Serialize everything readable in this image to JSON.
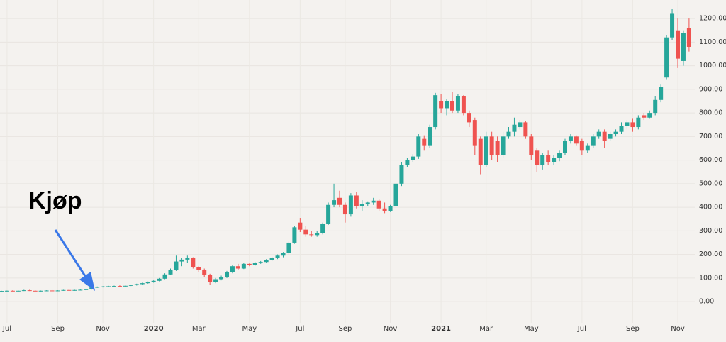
{
  "chart_data": {
    "type": "candlestick",
    "annotation": "Kjøp",
    "categories": [
      null,
      "Jul",
      null,
      null,
      null,
      null,
      null,
      null,
      null,
      null,
      "Sep",
      null,
      null,
      null,
      null,
      null,
      null,
      null,
      "Nov",
      null,
      null,
      null,
      null,
      null,
      null,
      null,
      null,
      "2020",
      null,
      null,
      null,
      null,
      null,
      null,
      null,
      "Mar",
      null,
      null,
      null,
      null,
      null,
      null,
      null,
      null,
      "May",
      null,
      null,
      null,
      null,
      null,
      null,
      null,
      null,
      "Jul",
      null,
      null,
      null,
      null,
      null,
      null,
      null,
      "Sep",
      null,
      null,
      null,
      null,
      null,
      null,
      null,
      "Nov",
      null,
      null,
      null,
      null,
      null,
      null,
      null,
      null,
      "2021",
      null,
      null,
      null,
      null,
      null,
      null,
      null,
      "Mar",
      null,
      null,
      null,
      null,
      null,
      null,
      null,
      "May",
      null,
      null,
      null,
      null,
      null,
      null,
      null,
      null,
      "Jul",
      null,
      null,
      null,
      null,
      null,
      null,
      null,
      null,
      "Sep",
      null,
      null,
      null,
      null,
      null,
      null,
      null,
      "Nov",
      null,
      null
    ],
    "open": [
      44,
      45,
      46,
      45,
      46,
      48,
      46,
      45,
      46,
      47,
      46,
      47,
      49,
      48,
      49,
      50,
      52,
      60,
      62,
      64,
      65,
      66,
      65,
      67,
      70,
      74,
      78,
      83,
      88,
      97,
      115,
      135,
      170,
      178,
      185,
      145,
      135,
      112,
      82,
      95,
      105,
      125,
      150,
      140,
      160,
      155,
      165,
      168,
      176,
      185,
      195,
      205,
      250,
      335,
      305,
      285,
      282,
      290,
      330,
      410,
      440,
      410,
      370,
      450,
      405,
      415,
      420,
      428,
      395,
      385,
      405,
      500,
      580,
      600,
      615,
      690,
      660,
      740,
      850,
      820,
      850,
      810,
      870,
      800,
      770,
      690,
      580,
      700,
      680,
      620,
      700,
      720,
      740,
      760,
      700,
      640,
      580,
      620,
      590,
      610,
      630,
      680,
      700,
      680,
      640,
      660,
      700,
      720,
      690,
      710,
      720,
      745,
      760,
      740,
      790,
      780,
      800,
      855,
      950,
      1120,
      1150,
      1020,
      1160
    ],
    "high": [
      46,
      47,
      48,
      47,
      50,
      50,
      48,
      47,
      48,
      49,
      48,
      50,
      51,
      50,
      52,
      53,
      62,
      64,
      66,
      67,
      68,
      69,
      68,
      72,
      76,
      80,
      85,
      90,
      100,
      120,
      140,
      195,
      185,
      195,
      188,
      150,
      140,
      118,
      100,
      110,
      130,
      155,
      160,
      165,
      162,
      168,
      172,
      180,
      190,
      200,
      210,
      255,
      320,
      355,
      320,
      300,
      300,
      335,
      420,
      500,
      470,
      420,
      460,
      465,
      430,
      425,
      440,
      435,
      420,
      410,
      510,
      590,
      610,
      625,
      710,
      705,
      750,
      885,
      880,
      860,
      890,
      880,
      875,
      810,
      780,
      700,
      720,
      720,
      700,
      720,
      740,
      780,
      770,
      765,
      710,
      650,
      630,
      640,
      620,
      640,
      690,
      710,
      705,
      690,
      670,
      710,
      730,
      730,
      720,
      730,
      760,
      770,
      775,
      790,
      800,
      810,
      870,
      920,
      1130,
      1240,
      1200,
      1150,
      1200
    ],
    "low": [
      42,
      43,
      44,
      43,
      45,
      45,
      44,
      43,
      44,
      45,
      44,
      46,
      47,
      46,
      47,
      48,
      51,
      58,
      60,
      62,
      63,
      64,
      63,
      66,
      68,
      72,
      76,
      80,
      86,
      95,
      112,
      130,
      150,
      165,
      140,
      125,
      105,
      70,
      78,
      90,
      100,
      120,
      135,
      138,
      150,
      152,
      160,
      165,
      172,
      180,
      188,
      200,
      245,
      295,
      275,
      275,
      275,
      285,
      325,
      400,
      400,
      335,
      360,
      395,
      385,
      405,
      410,
      385,
      375,
      380,
      400,
      490,
      570,
      590,
      605,
      640,
      650,
      730,
      800,
      790,
      800,
      800,
      790,
      740,
      620,
      540,
      570,
      600,
      590,
      610,
      690,
      700,
      730,
      690,
      600,
      550,
      560,
      580,
      580,
      595,
      620,
      670,
      660,
      620,
      630,
      650,
      690,
      650,
      680,
      700,
      710,
      730,
      720,
      730,
      770,
      775,
      790,
      845,
      940,
      1110,
      990,
      1000,
      1060
    ],
    "close": [
      45,
      46,
      45,
      46,
      48,
      46,
      45,
      46,
      47,
      46,
      47,
      49,
      48,
      49,
      50,
      52,
      60,
      62,
      64,
      65,
      66,
      65,
      67,
      70,
      74,
      78,
      83,
      88,
      97,
      115,
      135,
      170,
      178,
      185,
      145,
      135,
      112,
      82,
      95,
      105,
      125,
      150,
      140,
      160,
      155,
      165,
      168,
      176,
      185,
      195,
      205,
      250,
      315,
      305,
      285,
      282,
      290,
      330,
      410,
      430,
      410,
      370,
      450,
      405,
      415,
      420,
      428,
      395,
      385,
      405,
      500,
      580,
      600,
      615,
      700,
      660,
      740,
      875,
      820,
      850,
      810,
      870,
      800,
      760,
      660,
      580,
      700,
      620,
      620,
      700,
      720,
      750,
      760,
      700,
      620,
      580,
      620,
      590,
      610,
      630,
      680,
      700,
      670,
      640,
      660,
      700,
      720,
      680,
      710,
      720,
      745,
      760,
      740,
      780,
      780,
      800,
      855,
      910,
      1120,
      1220,
      1030,
      1140,
      1080
    ],
    "up_color": "#26a69a",
    "down_color": "#ef5350",
    "ylim": [
      -90,
      1278.5
    ],
    "yticks": [
      {
        "value": 0,
        "label": "0.00"
      },
      {
        "value": 100,
        "label": "100.00"
      },
      {
        "value": 200,
        "label": "200.00"
      },
      {
        "value": 300,
        "label": "300.00"
      },
      {
        "value": 400,
        "label": "400.00"
      },
      {
        "value": 500,
        "label": "500.00"
      },
      {
        "value": 600,
        "label": "600.00"
      },
      {
        "value": 700,
        "label": "700.00"
      },
      {
        "value": 800,
        "label": "800.00"
      },
      {
        "value": 900,
        "label": "900.00"
      },
      {
        "value": 1000,
        "label": "1000.00"
      },
      {
        "value": 1100,
        "label": "1100.00"
      },
      {
        "value": 1200,
        "label": "1200.00"
      }
    ],
    "grid": true
  }
}
